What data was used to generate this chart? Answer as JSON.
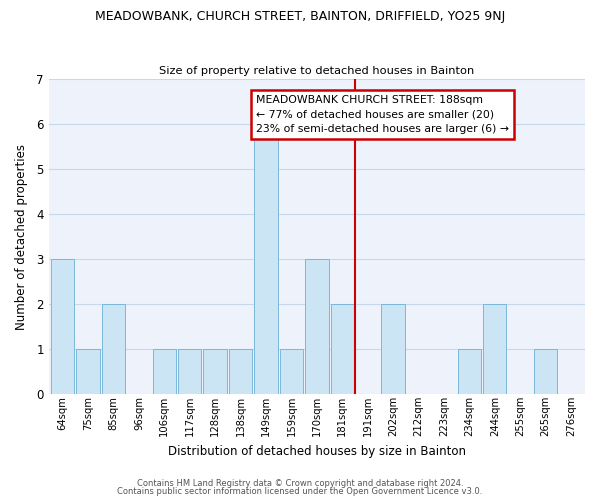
{
  "title": "MEADOWBANK, CHURCH STREET, BAINTON, DRIFFIELD, YO25 9NJ",
  "subtitle": "Size of property relative to detached houses in Bainton",
  "xlabel": "Distribution of detached houses by size in Bainton",
  "ylabel": "Number of detached properties",
  "categories": [
    "64sqm",
    "75sqm",
    "85sqm",
    "96sqm",
    "106sqm",
    "117sqm",
    "128sqm",
    "138sqm",
    "149sqm",
    "159sqm",
    "170sqm",
    "181sqm",
    "191sqm",
    "202sqm",
    "212sqm",
    "223sqm",
    "234sqm",
    "244sqm",
    "255sqm",
    "265sqm",
    "276sqm"
  ],
  "values": [
    3,
    1,
    2,
    0,
    1,
    1,
    1,
    1,
    6,
    1,
    3,
    2,
    0,
    2,
    0,
    0,
    1,
    2,
    0,
    1,
    0
  ],
  "bar_color": "#cce5f5",
  "bar_edge_color": "#7ab8d8",
  "annotation_title": "MEADOWBANK CHURCH STREET: 188sqm",
  "annotation_line1": "← 77% of detached houses are smaller (20)",
  "annotation_line2": "23% of semi-detached houses are larger (6) →",
  "annotation_box_facecolor": "#ffffff",
  "annotation_box_edgecolor": "#cc0000",
  "ref_line_color": "#cc0000",
  "ylim_max": 7,
  "yticks": [
    0,
    1,
    2,
    3,
    4,
    5,
    6,
    7
  ],
  "footer1": "Contains HM Land Registry data © Crown copyright and database right 2024.",
  "footer2": "Contains public sector information licensed under the Open Government Licence v3.0.",
  "plot_bg_color": "#eef3fb",
  "fig_bg_color": "#ffffff",
  "grid_color": "#c8d8ec",
  "title_fontsize": 9.0,
  "subtitle_fontsize": 8.2,
  "ylabel_fontsize": 8.5,
  "xlabel_fontsize": 8.5,
  "tick_fontsize": 7.2,
  "ytick_fontsize": 8.5,
  "footer_fontsize": 6.0,
  "annot_fontsize": 7.8
}
